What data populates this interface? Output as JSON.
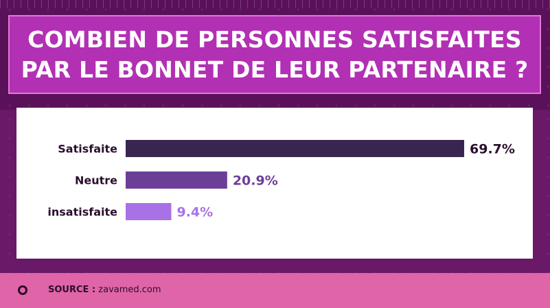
{
  "title": {
    "line1": "COMBIEN DE PERSONNES SATISFAITES",
    "line2": "PAR LE BONNET DE LEUR PARTENAIRE ?"
  },
  "chart_data": {
    "type": "bar",
    "orientation": "horizontal",
    "title": "COMBIEN DE PERSONNES SATISFAITES PAR LE BONNET DE LEUR PARTENAIRE ?",
    "categories": [
      "Satisfaite",
      "Neutre",
      "insatisfaite"
    ],
    "values": [
      69.7,
      20.9,
      9.4
    ],
    "value_labels": [
      "69.7%",
      "20.9%",
      "9.4%"
    ],
    "colors": [
      "#3a2550",
      "#6b3f97",
      "#a872e6"
    ],
    "label_colors": [
      "#2a0f2d",
      "#6b3f97",
      "#a872e6"
    ],
    "xlim": [
      0,
      69.7
    ],
    "grid": false,
    "legend": "none"
  },
  "footer": {
    "source_label": "SOURCE :",
    "source_value": "zavamed.com"
  }
}
